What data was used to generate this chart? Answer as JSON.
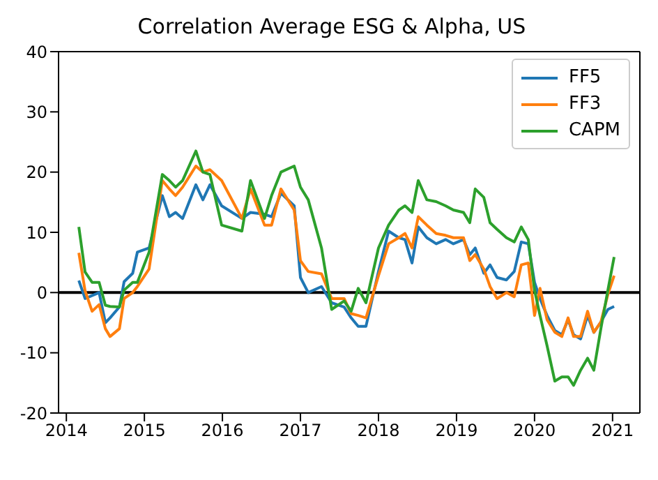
{
  "chart_data": {
    "type": "line",
    "title": "Correlation Average ESG & Alpha, US",
    "x": [
      2014.16,
      2014.24,
      2014.33,
      2014.42,
      2014.5,
      2014.56,
      2014.68,
      2014.74,
      2014.85,
      2014.91,
      2015.06,
      2015.23,
      2015.32,
      2015.4,
      2015.49,
      2015.66,
      2015.75,
      2015.84,
      2015.99,
      2016.25,
      2016.36,
      2016.54,
      2016.63,
      2016.75,
      2016.92,
      2017.0,
      2017.1,
      2017.27,
      2017.4,
      2017.56,
      2017.65,
      2017.74,
      2017.84,
      2018.0,
      2018.13,
      2018.26,
      2018.34,
      2018.43,
      2018.51,
      2018.62,
      2018.74,
      2018.86,
      2018.96,
      2019.09,
      2019.17,
      2019.24,
      2019.35,
      2019.43,
      2019.52,
      2019.64,
      2019.74,
      2019.83,
      2019.92,
      2020.0,
      2020.07,
      2020.16,
      2020.26,
      2020.35,
      2020.43,
      2020.5,
      2020.59,
      2020.68,
      2020.76,
      2020.85,
      2020.94,
      2021.02
    ],
    "series": [
      {
        "name": "FF5",
        "color": "#1f77b4",
        "values": [
          2,
          -1,
          -0.5,
          0,
          -5,
          -4.2,
          -2.4,
          1.8,
          3.2,
          6.7,
          7.4,
          16.1,
          12.6,
          13.3,
          12.3,
          17.9,
          15.4,
          17.9,
          14.4,
          12.3,
          13.3,
          13,
          12.6,
          16.5,
          14.4,
          2.5,
          0,
          1,
          -1.7,
          -2.4,
          -4.2,
          -5.6,
          -5.6,
          3.5,
          10.2,
          9.1,
          8.8,
          4.9,
          10.9,
          9.1,
          8.1,
          8.8,
          8.1,
          8.8,
          6.3,
          7.4,
          3.2,
          4.6,
          2.5,
          2.1,
          3.5,
          8.4,
          8.1,
          1.7,
          -1,
          -3.8,
          -6.3,
          -7,
          -4.5,
          -7,
          -7.7,
          -3.8,
          -6.6,
          -4.9,
          -2.8,
          -2.3
        ]
      },
      {
        "name": "FF3",
        "color": "#ff7f0e",
        "values": [
          6.6,
          0.3,
          -3.1,
          -2,
          -6,
          -7.3,
          -6,
          -1,
          0,
          1,
          3.9,
          18.6,
          17.2,
          16.1,
          17.5,
          21,
          20,
          20.4,
          18.6,
          12.3,
          17.2,
          11.2,
          11.2,
          17.2,
          13.7,
          5.3,
          3.5,
          3.1,
          -1,
          -1,
          -3.5,
          -3.8,
          -4.2,
          2.8,
          8.1,
          9.1,
          9.8,
          7.4,
          12.6,
          11.2,
          9.8,
          9.5,
          9.1,
          9.1,
          5.3,
          6.3,
          3.9,
          1,
          -1,
          0,
          -0.7,
          4.6,
          4.9,
          -3.8,
          0.7,
          -4.5,
          -6.6,
          -7.3,
          -4.2,
          -7.3,
          -7.3,
          -3.1,
          -6.6,
          -4.9,
          -0.3,
          2.8
        ]
      },
      {
        "name": "CAPM",
        "color": "#2ca02c",
        "values": [
          10.9,
          3.4,
          1.7,
          1.7,
          -2.1,
          -2.3,
          -2.4,
          0.4,
          1.7,
          1.7,
          6.7,
          19.6,
          18.6,
          17.5,
          18.6,
          23.5,
          20,
          19.6,
          11.2,
          10.2,
          18.6,
          12.3,
          16.1,
          20,
          21,
          17.5,
          15.4,
          7.4,
          -2.8,
          -1.4,
          -3.1,
          0.7,
          -1.7,
          7.4,
          11.2,
          13.7,
          14.4,
          13.3,
          18.6,
          15.4,
          15.1,
          14.4,
          13.7,
          13.3,
          11.6,
          17.2,
          15.8,
          11.6,
          10.5,
          9.1,
          8.4,
          10.9,
          8.8,
          0.4,
          -3.8,
          -8.8,
          -14.7,
          -14,
          -14,
          -15.4,
          -12.9,
          -10.9,
          -12.9,
          -6,
          0.4,
          5.9
        ]
      }
    ],
    "xlim": [
      2013.9,
      2021.35
    ],
    "xticks": [
      2014,
      2015,
      2016,
      2017,
      2018,
      2019,
      2020,
      2021
    ],
    "ylim": [
      -20,
      40
    ],
    "yticks": [
      -20,
      -10,
      0,
      10,
      20,
      30,
      40
    ],
    "ref_lines": [
      {
        "axis": "y",
        "value": 0,
        "color": "#000000"
      }
    ],
    "legend": "top right",
    "marker": "none",
    "line_style": "solid"
  }
}
